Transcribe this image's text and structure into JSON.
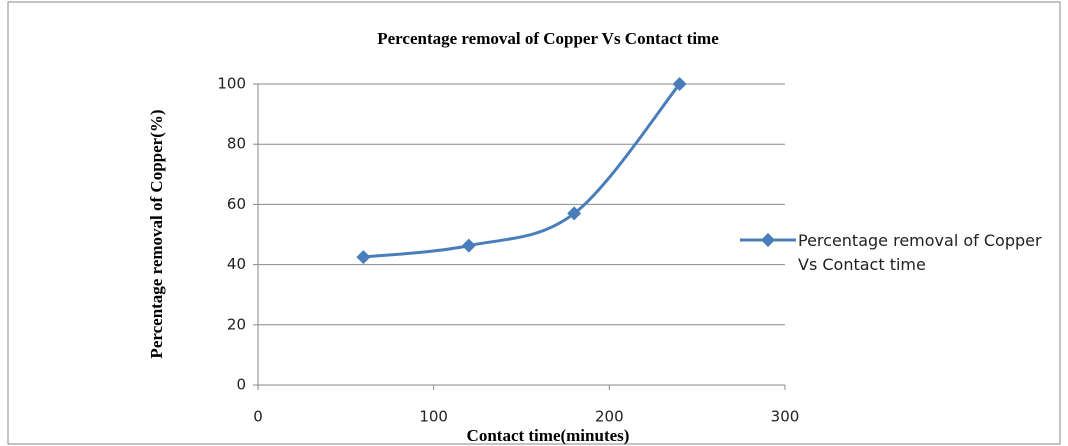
{
  "chart_data": {
    "type": "line",
    "title": "Percentage removal of Copper Vs Contact time",
    "x_label": "Contact time(minutes)",
    "y_label": "Percentage removal of Copper(%)",
    "x": [
      60,
      120,
      180,
      240
    ],
    "series": [
      {
        "name": "Percentage removal of Copper Vs Contact time",
        "color": "#4a7ebb",
        "values": [
          42.5,
          46.3,
          57,
          100
        ]
      }
    ],
    "xlim": [
      0,
      300
    ],
    "xticks": [
      0,
      100,
      200,
      300
    ],
    "ylim": [
      0,
      100
    ],
    "yticks": [
      0,
      20,
      40,
      60,
      80,
      100
    ],
    "grid": true,
    "legend": "right"
  }
}
